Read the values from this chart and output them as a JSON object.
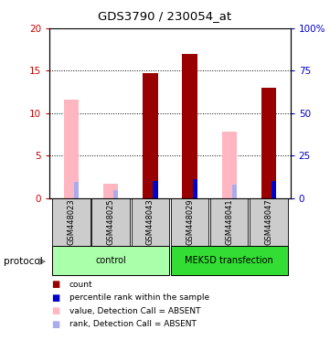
{
  "title": "GDS3790 / 230054_at",
  "samples": [
    "GSM448023",
    "GSM448025",
    "GSM448043",
    "GSM448029",
    "GSM448041",
    "GSM448047"
  ],
  "count_values": [
    11.6,
    1.7,
    14.7,
    17.0,
    7.8,
    13.0
  ],
  "count_absent": [
    true,
    true,
    false,
    false,
    true,
    false
  ],
  "rank_values": [
    9.7,
    4.8,
    10.3,
    11.1,
    8.0,
    10.2
  ],
  "rank_absent": [
    true,
    true,
    false,
    false,
    true,
    false
  ],
  "ylim_left": [
    0,
    20
  ],
  "ylim_right": [
    0,
    100
  ],
  "y_ticks_left": [
    0,
    5,
    10,
    15,
    20
  ],
  "y_ticks_right": [
    0,
    25,
    50,
    75,
    100
  ],
  "y_tick_labels_right": [
    "0",
    "25",
    "50",
    "75",
    "100%"
  ],
  "color_count": "#990000",
  "color_count_absent": "#FFB6C1",
  "color_rank": "#0000cc",
  "color_rank_absent": "#aaaaee",
  "color_left_axis": "#cc0000",
  "color_right_axis": "#0000cc",
  "group_data": [
    {
      "name": "control",
      "start": 0,
      "end": 2,
      "color": "#aaffaa"
    },
    {
      "name": "MEK5D transfection",
      "start": 3,
      "end": 5,
      "color": "#33dd33"
    }
  ],
  "legend_items": [
    {
      "color": "#990000",
      "label": "count"
    },
    {
      "color": "#0000cc",
      "label": "percentile rank within the sample"
    },
    {
      "color": "#FFB6C1",
      "label": "value, Detection Call = ABSENT"
    },
    {
      "color": "#aaaaee",
      "label": "rank, Detection Call = ABSENT"
    }
  ]
}
